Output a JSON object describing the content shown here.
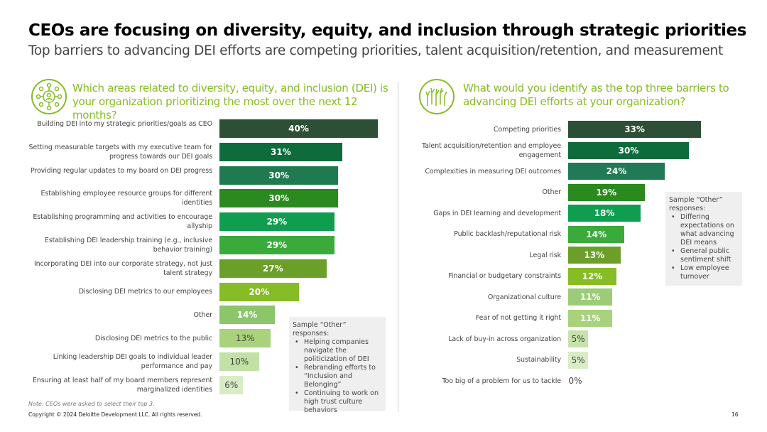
{
  "title": "CEOs are focusing on diversity, equity, and inclusion through strategic priorities",
  "subtitle": "Top barriers to advancing DEI efforts are competing priorities, talent acquisition/retention, and measurement",
  "chart_data": [
    {
      "type": "bar",
      "orientation": "horizontal",
      "title": "Which areas related to diversity, equity, and inclusion (DEI) is your organization prioritizing the most over the next 12 months?",
      "categories": [
        "Building DEI into my strategic priorities/goals as CEO",
        "Setting measurable targets with my executive team for progress towards our DEI goals",
        "Providing regular updates to my board on DEI progress",
        "Establishing employee resource groups for different identities",
        "Establishing programming and activities to encourage allyship",
        "Establishing DEI leadership training (e.g., inclusive behavior training)",
        "Incorporating DEI into our corporate strategy, not just talent strategy",
        "Disclosing DEI metrics to our employees",
        "Other",
        "Disclosing DEI metrics to the public",
        "Linking leadership DEI goals to individual leader performance and pay",
        "Ensuring at least half of my board members represent marginalized identities"
      ],
      "values": [
        40,
        31,
        30,
        30,
        29,
        29,
        27,
        20,
        14,
        13,
        10,
        6
      ],
      "labels": [
        "40%",
        "31%",
        "30%",
        "30%",
        "29%",
        "29%",
        "27%",
        "20%",
        "14%",
        "13%",
        "10%",
        "6%"
      ],
      "colors": [
        "#2d4f36",
        "#0e6b3c",
        "#1f7a50",
        "#2b8a1f",
        "#0f9e50",
        "#3aab3a",
        "#6a9f2a",
        "#86bc25",
        "#8cc56a",
        "#a8d27c",
        "#c2e1a4",
        "#d8edc6"
      ],
      "dark_text": [
        false,
        false,
        false,
        false,
        false,
        false,
        false,
        false,
        false,
        true,
        true,
        true
      ],
      "callout": {
        "title": "Sample “Other” responses:",
        "items": [
          "Helping companies navigate the politicization of DEI",
          "Rebranding efforts to “Inclusion and Belonging”",
          "Continuing to work on high trust culture behaviors"
        ]
      },
      "xlim": [
        0,
        40
      ]
    },
    {
      "type": "bar",
      "orientation": "horizontal",
      "title": "What would you identify as the top three barriers to advancing DEI efforts at your organization?",
      "categories": [
        "Competing priorities",
        "Talent acquisition/retention and employee engagement",
        "Complexities in measuring DEI outcomes",
        "Other",
        "Gaps in DEI learning and development",
        "Public backlash/reputational risk",
        "Legal risk",
        "Financial or budgetary constraints",
        "Organizational culture",
        "Fear of not getting it right",
        "Lack of buy-in across organization",
        "Sustainability",
        "Too big of a problem for us to tackle"
      ],
      "values": [
        33,
        30,
        24,
        19,
        18,
        14,
        13,
        12,
        11,
        11,
        5,
        5,
        0
      ],
      "labels": [
        "33%",
        "30%",
        "24%",
        "19%",
        "18%",
        "14%",
        "13%",
        "12%",
        "11%",
        "11%",
        "5%",
        "5%",
        "0%"
      ],
      "colors": [
        "#2d4f36",
        "#0e6b3c",
        "#1f7a55",
        "#2b8a1f",
        "#0f9e50",
        "#3aab3a",
        "#6a9f2a",
        "#86bc25",
        "#9ccc78",
        "#a8d27c",
        "#c6e3ab",
        "#d8edc6",
        "#ffffff"
      ],
      "dark_text": [
        false,
        false,
        false,
        false,
        false,
        false,
        false,
        false,
        false,
        false,
        true,
        true,
        true
      ],
      "callout": {
        "title": "Sample “Other” responses:",
        "items": [
          "Differing expectations on what advancing DEI means",
          "General public sentiment shift",
          "Low employee turnover"
        ]
      },
      "xlim": [
        0,
        33
      ]
    }
  ],
  "note": "Note: CEOs were asked to select their top 3.",
  "copyright": "Copyright © 2024 Deloitte Development LLC. All rights reserved.",
  "page_number": "16",
  "colors": {
    "accent": "#86bc25"
  }
}
